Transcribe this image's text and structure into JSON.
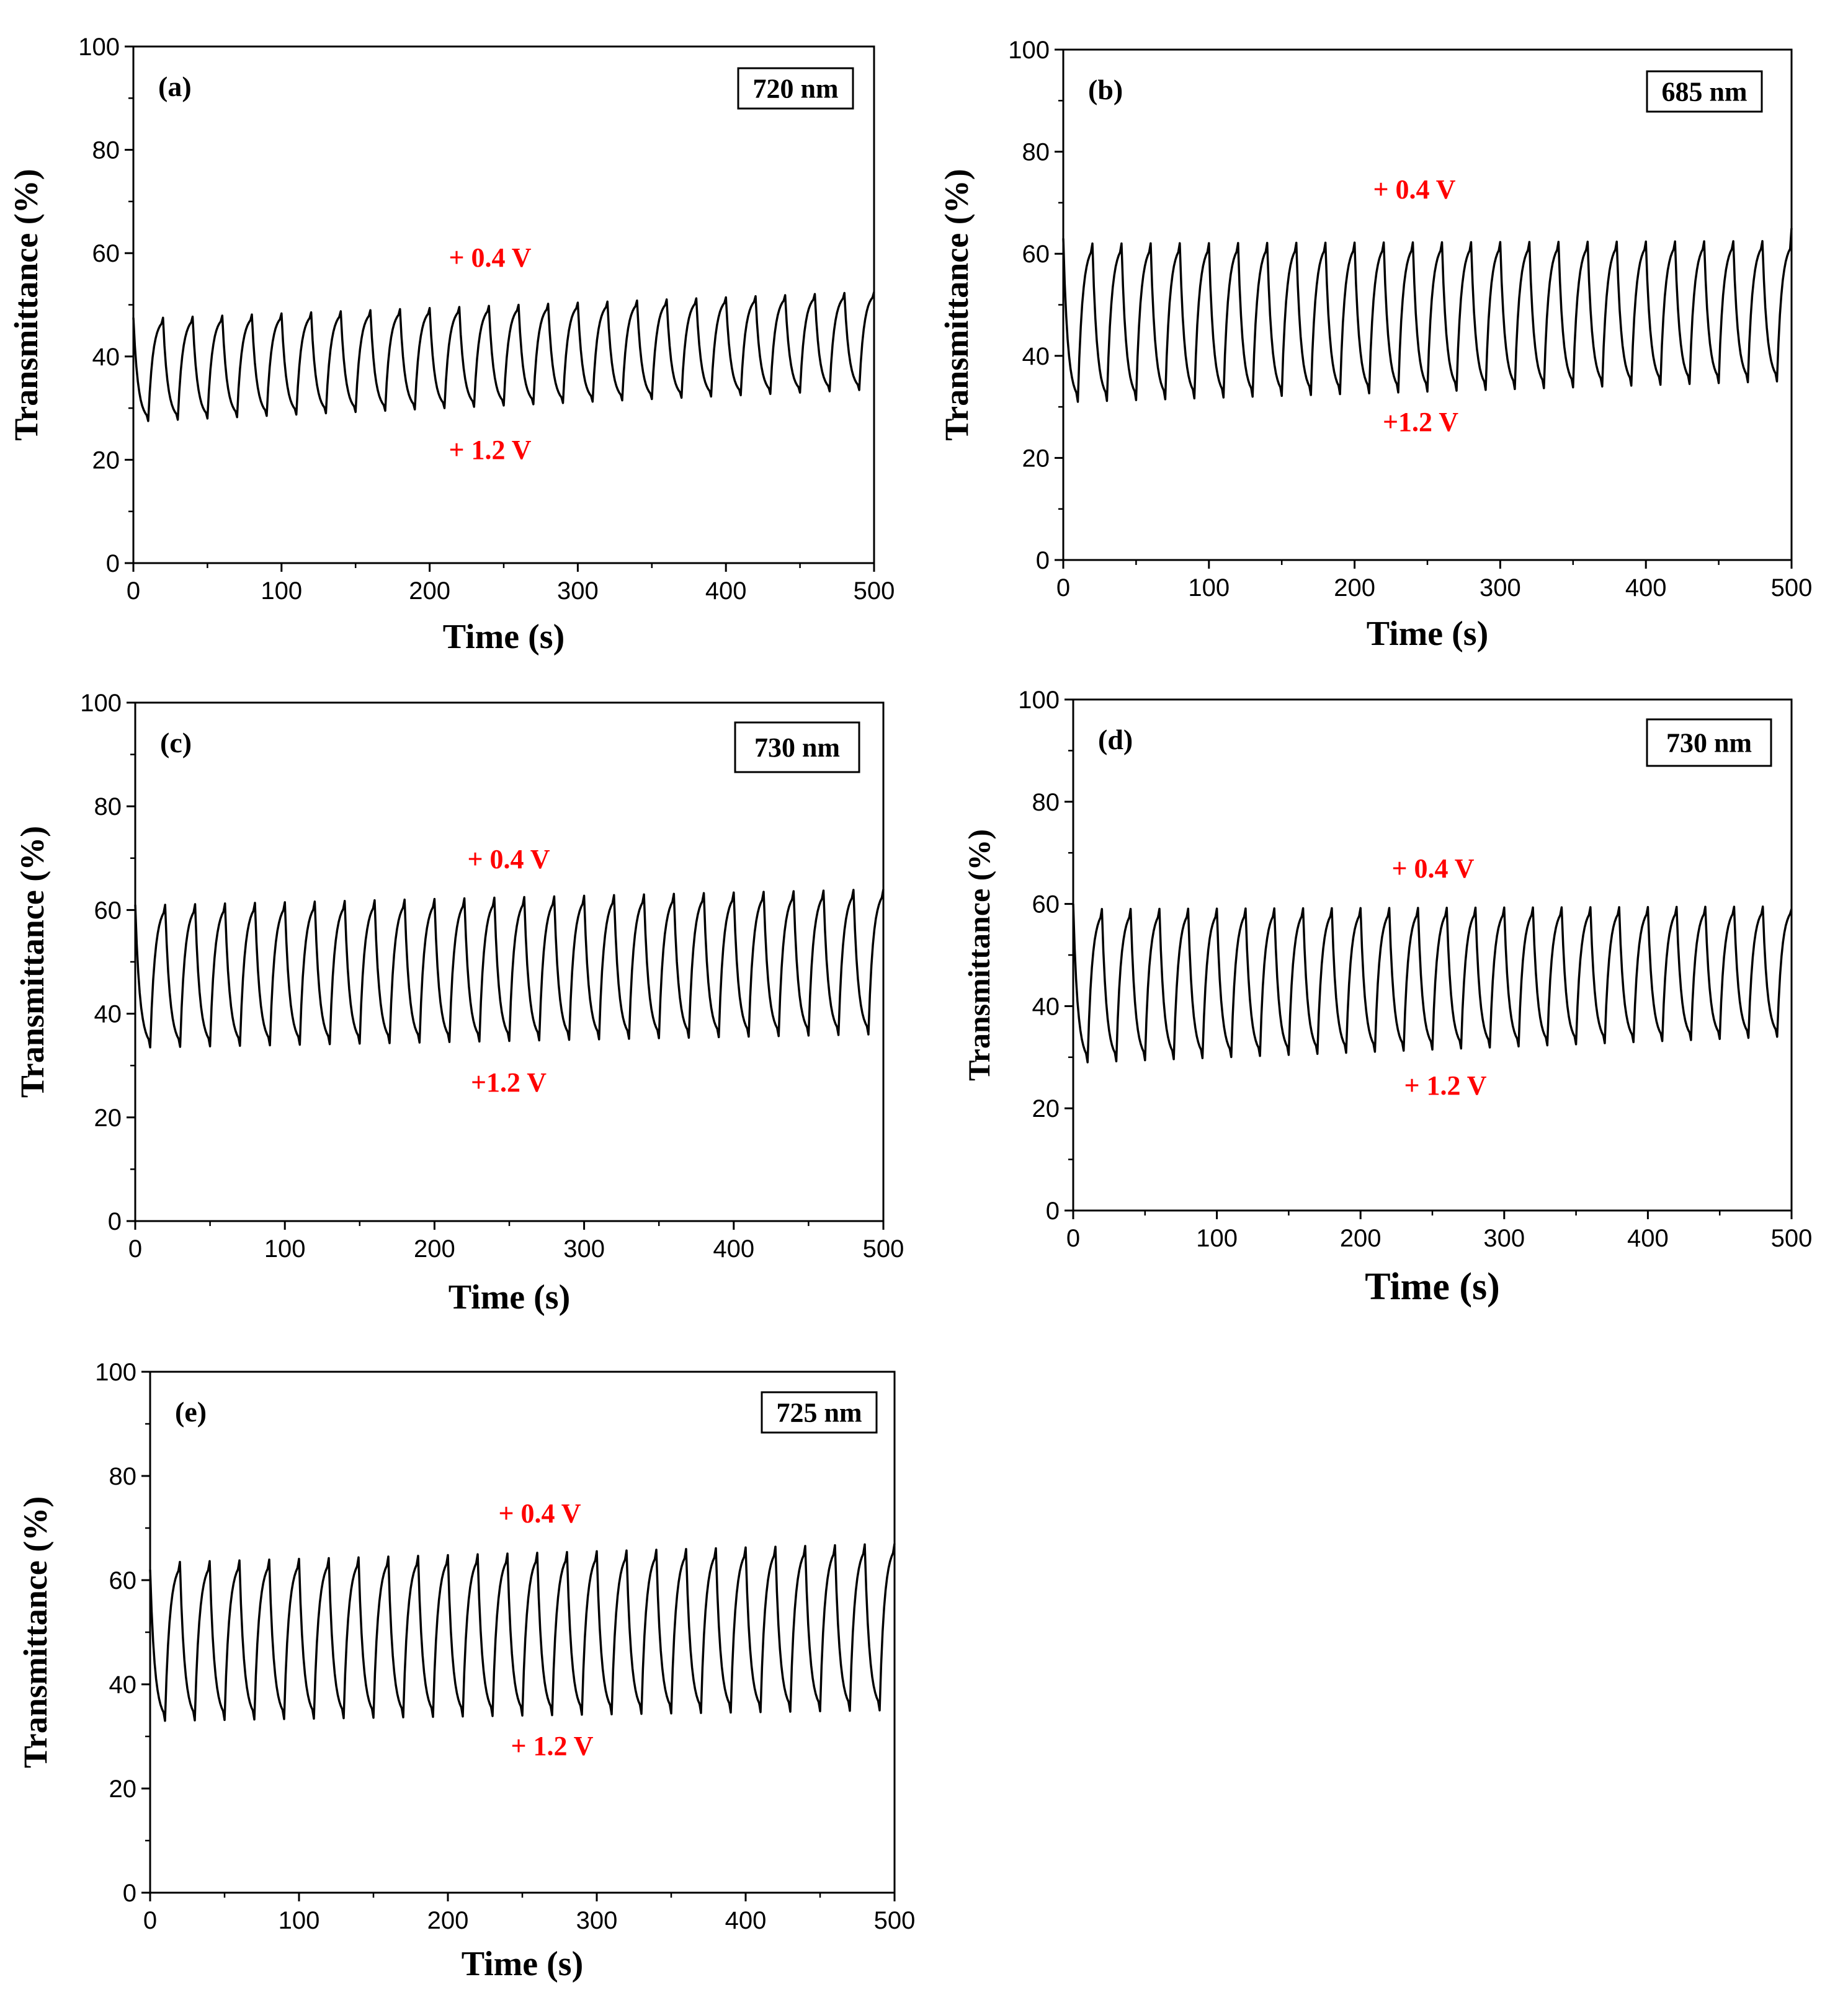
{
  "colors": {
    "axis": "#000000",
    "line": "#000000",
    "annotation": "#ff0000",
    "background": "#ffffff"
  },
  "chart_data": [
    {
      "type": "line",
      "panel_label": "(a)",
      "wavelength_label": "720 nm",
      "xlabel": "Time (s)",
      "ylabel": "Transmittance (%)",
      "xlim": [
        0,
        500
      ],
      "ylim": [
        0,
        100
      ],
      "xticks": [
        0,
        100,
        200,
        300,
        400,
        500
      ],
      "yticks": [
        0,
        20,
        40,
        60,
        80,
        100
      ],
      "annotations": [
        "+ 0.4 V",
        "+ 1.2 V"
      ],
      "annotation_values": {
        "bleached_voltage": "+ 0.4 V",
        "colored_voltage": "+ 1.2 V"
      },
      "series": [
        {
          "name": "transmittance",
          "period_s": 20,
          "cycles": 25,
          "start_value": 47.5,
          "peak_values": [
            47.5,
            52.5
          ],
          "trough_values": [
            27.5,
            33.5
          ],
          "end_value": 52.5
        }
      ]
    },
    {
      "type": "line",
      "panel_label": "(b)",
      "wavelength_label": "685 nm",
      "xlabel": "Time (s)",
      "ylabel": "Transmittance (%)",
      "xlim": [
        0,
        500
      ],
      "ylim": [
        0,
        100
      ],
      "xticks": [
        0,
        100,
        200,
        300,
        400,
        500
      ],
      "yticks": [
        0,
        20,
        40,
        60,
        80,
        100
      ],
      "annotations": [
        "+ 0.4 V",
        "+1.2 V"
      ],
      "series": [
        {
          "name": "transmittance",
          "period_s": 20,
          "cycles": 25,
          "start_value": 63,
          "peak_values": [
            62,
            62.5
          ],
          "trough_values": [
            31,
            35
          ],
          "end_value": 65
        }
      ]
    },
    {
      "type": "line",
      "panel_label": "(c)",
      "wavelength_label": "730 nm",
      "xlabel": "Time (s)",
      "ylabel": "Transmittance (%)",
      "xlim": [
        0,
        500
      ],
      "ylim": [
        0,
        100
      ],
      "xticks": [
        0,
        100,
        200,
        300,
        400,
        500
      ],
      "yticks": [
        0,
        20,
        40,
        60,
        80,
        100
      ],
      "annotations": [
        "+ 0.4 V",
        "+1.2 V"
      ],
      "series": [
        {
          "name": "transmittance",
          "period_s": 20,
          "cycles": 25,
          "start_value": 61,
          "peak_values": [
            61,
            64
          ],
          "trough_values": [
            33.5,
            36
          ],
          "end_value": 64
        }
      ]
    },
    {
      "type": "line",
      "panel_label": "(d)",
      "wavelength_label": "730 nm",
      "xlabel": "Time (s)",
      "ylabel": "Transmittance (%)",
      "xlim": [
        0,
        500
      ],
      "ylim": [
        0,
        100
      ],
      "xticks": [
        0,
        100,
        200,
        300,
        400,
        500
      ],
      "yticks": [
        0,
        20,
        40,
        60,
        80,
        100
      ],
      "annotations": [
        "+ 0.4 V",
        "+ 1.2 V"
      ],
      "series": [
        {
          "name": "transmittance",
          "period_s": 20,
          "cycles": 25,
          "start_value": 60,
          "peak_values": [
            59,
            59.5
          ],
          "trough_values": [
            29,
            34
          ],
          "end_value": 59
        }
      ]
    },
    {
      "type": "line",
      "panel_label": "(e)",
      "wavelength_label": "725 nm",
      "xlabel": "Time (s)",
      "ylabel": "Transmittance (%)",
      "xlim": [
        0,
        500
      ],
      "ylim": [
        0,
        100
      ],
      "xticks": [
        0,
        100,
        200,
        300,
        400,
        500
      ],
      "yticks": [
        0,
        20,
        40,
        60,
        80,
        100
      ],
      "annotations": [
        "+ 0.4 V",
        "+ 1.2 V"
      ],
      "series": [
        {
          "name": "transmittance",
          "period_s": 20,
          "cycles": 25,
          "start_value": 62,
          "peak_values": [
            63.5,
            67
          ],
          "trough_values": [
            33,
            35
          ],
          "end_value": 67
        }
      ]
    }
  ]
}
